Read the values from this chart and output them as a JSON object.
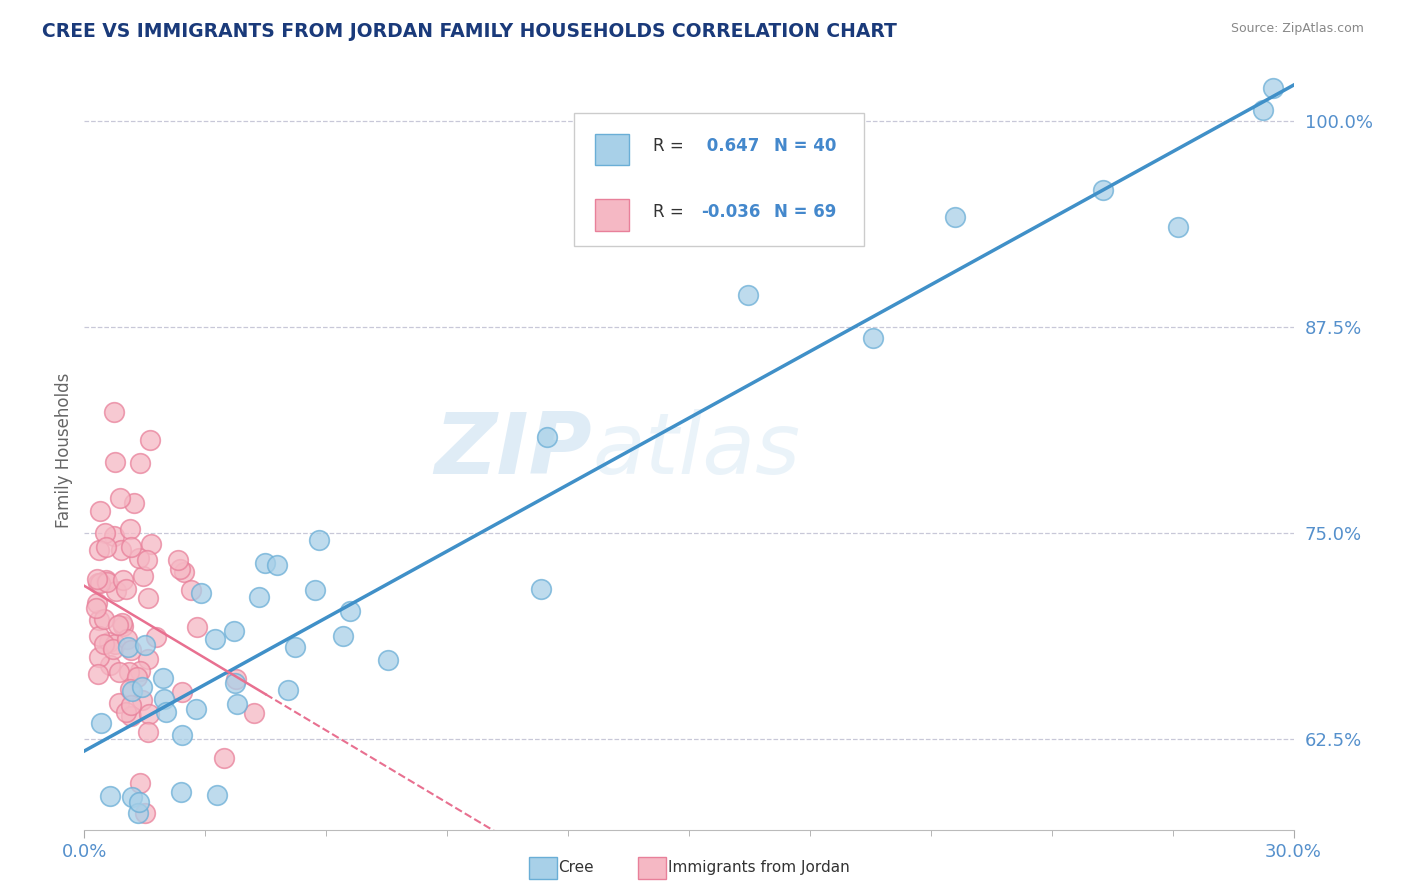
{
  "title": "CREE VS IMMIGRANTS FROM JORDAN FAMILY HOUSEHOLDS CORRELATION CHART",
  "source": "Source: ZipAtlas.com",
  "ylabel": "Family Households",
  "xlim": [
    0.0,
    30.0
  ],
  "ylim": [
    58.0,
    103.0
  ],
  "yticks": [
    62.5,
    75.0,
    87.5,
    100.0
  ],
  "ytick_labels": [
    "62.5%",
    "75.0%",
    "87.5%",
    "100.0%"
  ],
  "legend_r_cree": "0.647",
  "legend_n_cree": "40",
  "legend_r_jordan": "-0.036",
  "legend_n_jordan": "69",
  "cree_color": "#a8d0e8",
  "jordan_color": "#f5b8c4",
  "cree_edge_color": "#6aaed6",
  "jordan_edge_color": "#e8809a",
  "cree_line_color": "#4090c8",
  "jordan_line_color": "#e87090",
  "watermark_zip": "ZIP",
  "watermark_atlas": "atlas",
  "background_color": "#ffffff",
  "grid_color": "#c8c8d8",
  "title_color": "#1a3a7a",
  "source_color": "#888888",
  "tick_color": "#5590cc",
  "axis_label_color": "#666666",
  "legend_text_color": "#333333",
  "legend_val_color": "#4488cc"
}
